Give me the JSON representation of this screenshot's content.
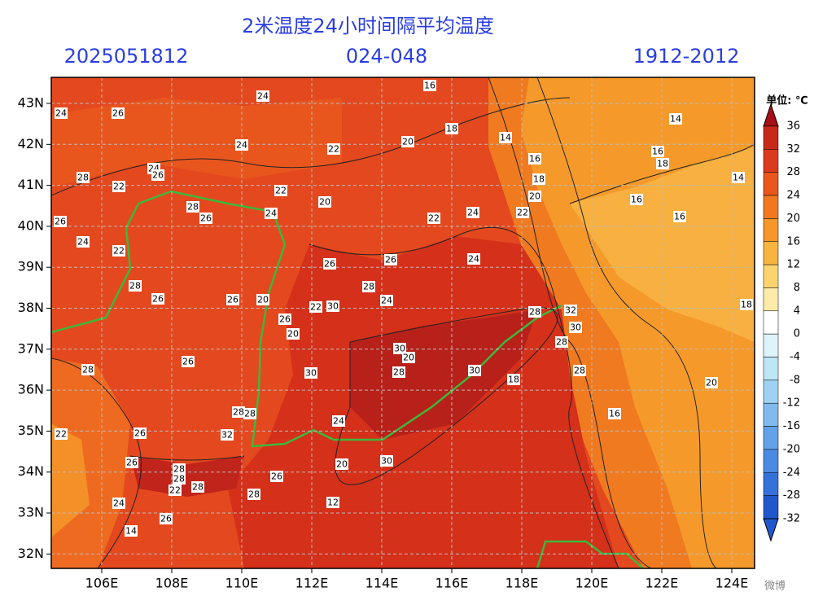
{
  "header": {
    "title": "2米温度24小时间隔平均温度",
    "left": "2025051812",
    "center": "024-048",
    "right": "1912-2012"
  },
  "lat_labels": [
    "43N",
    "42N",
    "41N",
    "40N",
    "39N",
    "38N",
    "37N",
    "36N",
    "35N",
    "34N",
    "33N",
    "32N"
  ],
  "lon_labels": [
    "106E",
    "108E",
    "110E",
    "112E",
    "114E",
    "116E",
    "118E",
    "120E",
    "122E",
    "124E"
  ],
  "colorbar": {
    "unit": "单位: ℃",
    "labels": [
      "36",
      "32",
      "28",
      "24",
      "20",
      "16",
      "12",
      "8",
      "4",
      "0",
      "-4",
      "-8",
      "-12",
      "-16",
      "-20",
      "-24",
      "-28",
      "-32"
    ],
    "colors": [
      "#a50f15",
      "#c8281a",
      "#dc3a1c",
      "#ea561e",
      "#f27820",
      "#f7962a",
      "#f9b440",
      "#fbd470",
      "#fdeca8",
      "#ffffff",
      "#dff3fa",
      "#bde6f6",
      "#9fd2f2",
      "#80baee",
      "#62a2e8",
      "#4a8ae2",
      "#3472da",
      "#2058cc"
    ]
  },
  "contour_labels": [
    "24",
    "26",
    "24",
    "16",
    "18",
    "14",
    "14",
    "24",
    "20",
    "22",
    "16",
    "16",
    "18",
    "28",
    "22",
    "24",
    "26",
    "22",
    "20",
    "18",
    "16",
    "14",
    "16",
    "20",
    "22",
    "24",
    "22",
    "26",
    "28",
    "24",
    "26",
    "24",
    "22",
    "26",
    "26",
    "24",
    "28",
    "26",
    "28",
    "26",
    "24",
    "20",
    "22",
    "30",
    "26",
    "20",
    "30",
    "28",
    "32",
    "30",
    "28",
    "28",
    "26",
    "20",
    "28",
    "30",
    "28",
    "18",
    "16",
    "20",
    "30",
    "32",
    "22",
    "28",
    "28",
    "24",
    "26",
    "26",
    "28",
    "28",
    "30",
    "28",
    "20",
    "26",
    "24",
    "22",
    "28",
    "26",
    "12",
    "14",
    "18"
  ],
  "watermark": "微博"
}
